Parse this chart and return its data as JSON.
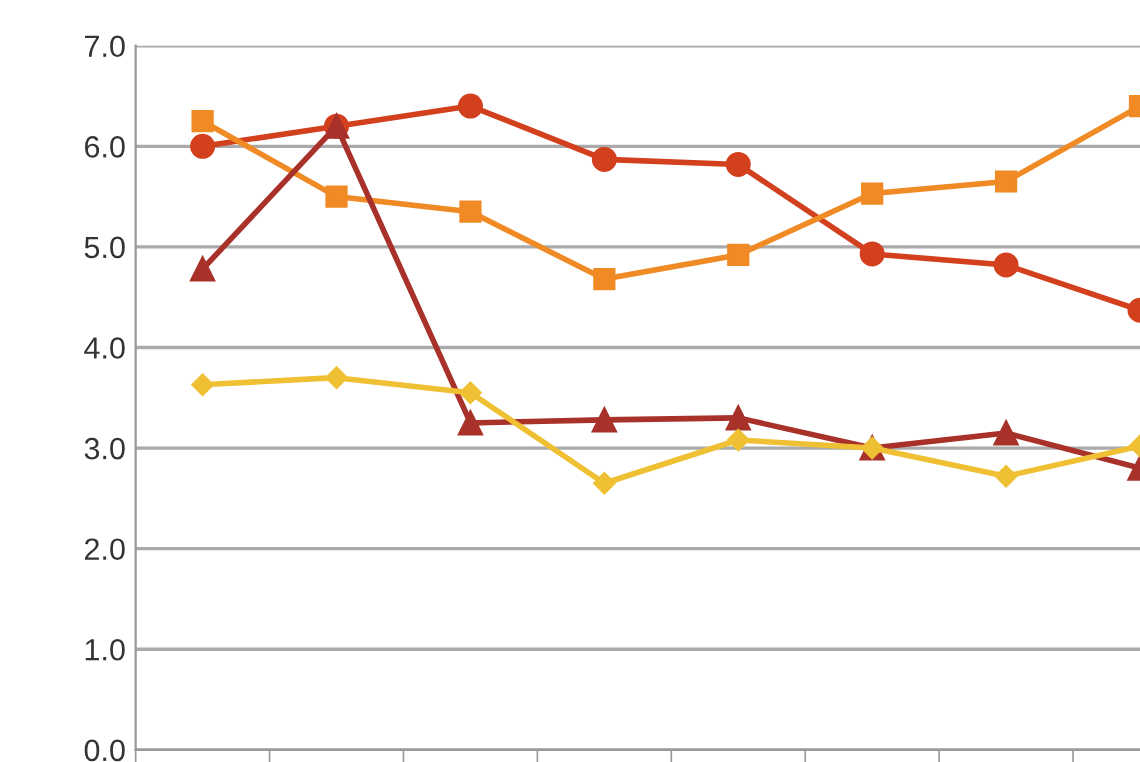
{
  "chart_data": {
    "type": "line",
    "categories": [
      null,
      null,
      null,
      null,
      null,
      null,
      null,
      null
    ],
    "series": [
      {
        "color": "#d2401e",
        "marker": "circle",
        "values": [
          6.0,
          6.2,
          6.4,
          5.87,
          5.82,
          4.93,
          4.82,
          4.37
        ]
      },
      {
        "color": "#f08a24",
        "marker": "square",
        "values": [
          6.25,
          5.5,
          5.35,
          4.68,
          4.92,
          5.53,
          5.65,
          6.4
        ]
      },
      {
        "color": "#a8322a",
        "marker": "triangle",
        "values": [
          4.78,
          6.2,
          3.25,
          3.28,
          3.3,
          3.0,
          3.15,
          2.8
        ]
      },
      {
        "color": "#f0c034",
        "marker": "diamond",
        "values": [
          3.63,
          3.7,
          3.55,
          2.65,
          3.08,
          3.0,
          2.72,
          3.02
        ]
      }
    ],
    "ylim": [
      0,
      7
    ],
    "yticks": [
      {
        "value": 0,
        "label": "0.0"
      },
      {
        "value": 1,
        "label": "1.0"
      },
      {
        "value": 2,
        "label": "2.0"
      },
      {
        "value": 3,
        "label": "3.0"
      },
      {
        "value": 4,
        "label": "4.0"
      },
      {
        "value": 5,
        "label": "5.0"
      },
      {
        "value": 6,
        "label": "6.0"
      },
      {
        "value": 7,
        "label": "7.0"
      }
    ],
    "grid": "y",
    "legend": false,
    "line_style": "solid"
  }
}
